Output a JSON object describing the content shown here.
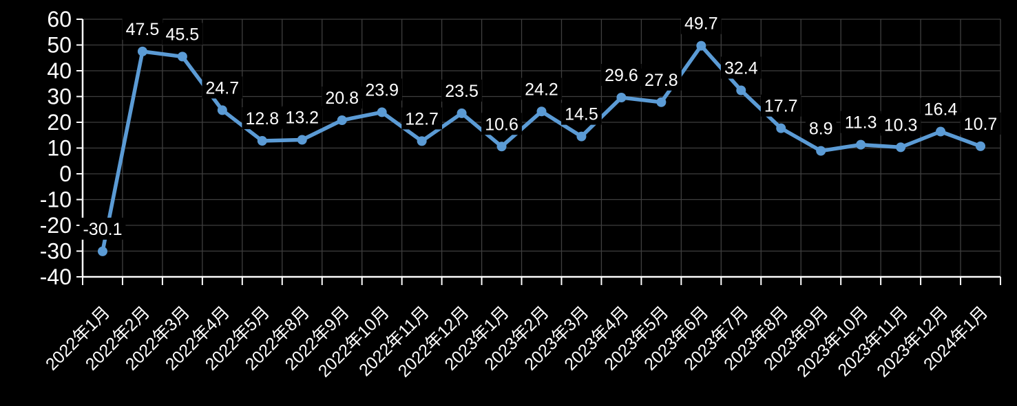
{
  "chart": {
    "background": "#000000",
    "series_color": "#5B9BD5",
    "grid_color": "#3f3f3f",
    "axis_color": "#ffffff",
    "text_color": "#ffffff",
    "label_bg": "#000000"
  },
  "chart_data": {
    "type": "line",
    "title": "",
    "categories": [
      "2022年1月",
      "2022年2月",
      "2022年3月",
      "2022年4月",
      "2022年5月",
      "2022年8月",
      "2022年9月",
      "2022年10月",
      "2022年11月",
      "2022年12月",
      "2023年1月",
      "2023年2月",
      "2023年3月",
      "2023年4月",
      "2023年5月",
      "2023年6月",
      "2023年7月",
      "2023年8月",
      "2023年9月",
      "2023年10月",
      "2023年11月",
      "2023年12月",
      "2024年1月"
    ],
    "values": [
      -30.1,
      47.5,
      45.5,
      24.7,
      12.8,
      13.2,
      20.8,
      23.9,
      12.7,
      23.5,
      10.6,
      24.2,
      14.5,
      29.6,
      27.8,
      49.7,
      32.4,
      17.7,
      8.9,
      11.3,
      10.3,
      16.4,
      10.7
    ],
    "yticks": [
      60,
      50,
      40,
      30,
      20,
      10,
      0,
      -10,
      -20,
      -30,
      -40
    ],
    "ylim": [
      -40,
      60
    ],
    "ytick_step": 10,
    "grid": true,
    "legend": "none",
    "data_labels": "above",
    "x_label_rotation": -45
  }
}
